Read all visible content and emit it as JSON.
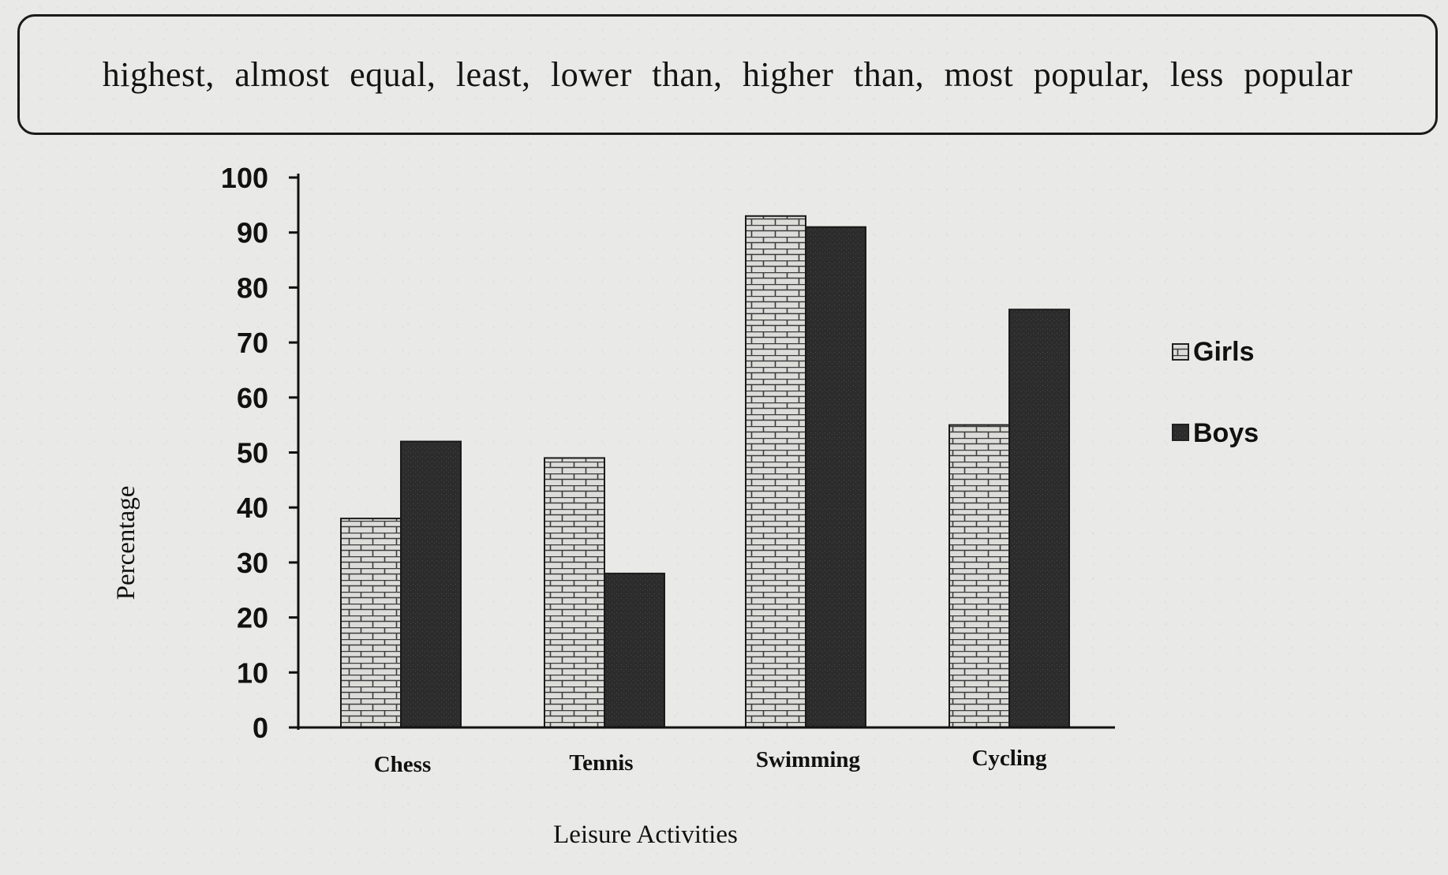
{
  "word_box": {
    "text": "highest,  almost  equal,  least,  lower  than,  higher  than,  most  popular,  less  popular"
  },
  "chart_data": {
    "type": "bar",
    "categories": [
      "Chess",
      "Tennis",
      "Swimming",
      "Cycling"
    ],
    "series": [
      {
        "name": "Girls",
        "values": [
          38,
          49,
          93,
          55
        ],
        "pattern": "brick-light"
      },
      {
        "name": "Boys",
        "values": [
          52,
          28,
          91,
          76
        ],
        "pattern": "dark-speckle"
      }
    ],
    "yticks": [
      "0",
      "10",
      "20",
      "30",
      "40",
      "50",
      "60",
      "70",
      "80",
      "90",
      "100"
    ],
    "ylim": [
      0,
      100
    ],
    "xlabel": "Leisure Activities",
    "ylabel": "Percentage",
    "legend_position": "right",
    "grid": false,
    "colors": {
      "girls_fill": "#d9d9d6",
      "girls_lines": "#3a3a3a",
      "boys_fill": "#2e2e2e"
    }
  }
}
